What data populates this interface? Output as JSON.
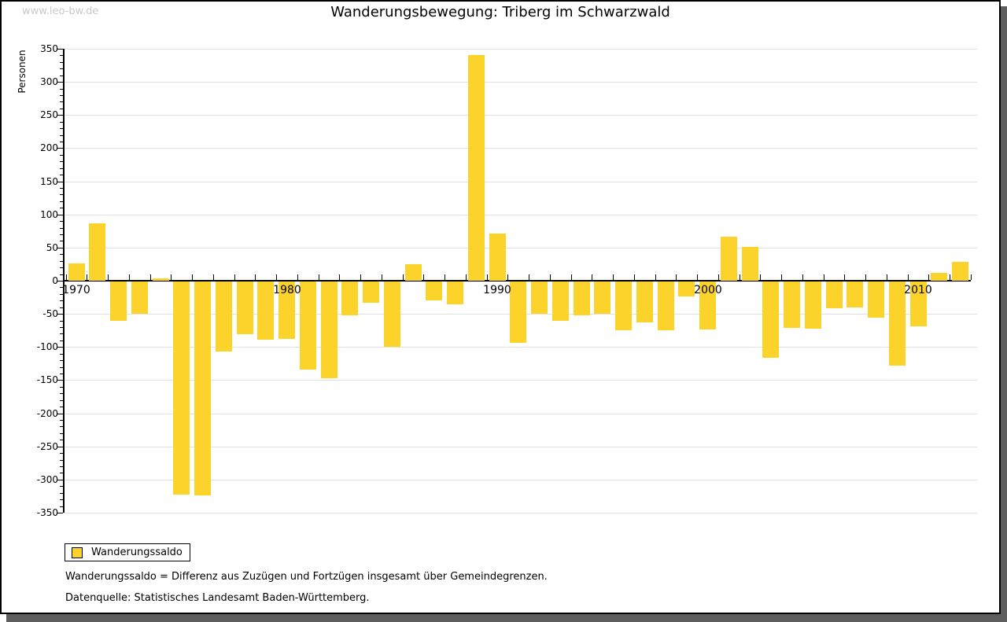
{
  "window": {
    "watermark": "www.leo-bw.de"
  },
  "header": {
    "title": "Wanderungsbewegung: Triberg im Schwarzwald"
  },
  "chart_data": {
    "type": "bar",
    "title": "Wanderungsbewegung: Triberg im Schwarzwald",
    "xlabel": "",
    "ylabel": "Personen",
    "ylim": [
      -350,
      350
    ],
    "grid": "horizontal",
    "legend_position": "bottom-left",
    "bar_color": "#FCD32B",
    "y_ticks": [
      350,
      300,
      250,
      200,
      150,
      100,
      50,
      0,
      -50,
      -100,
      -150,
      -200,
      -250,
      -300,
      -350
    ],
    "x_axis_labels": [
      "1970",
      "1980",
      "1990",
      "2000",
      "2010"
    ],
    "series": [
      {
        "name": "Wanderungssaldo",
        "categories": [
          1970,
          1971,
          1972,
          1973,
          1974,
          1975,
          1976,
          1977,
          1978,
          1979,
          1980,
          1981,
          1982,
          1983,
          1984,
          1985,
          1986,
          1987,
          1988,
          1989,
          1990,
          1991,
          1992,
          1993,
          1994,
          1995,
          1996,
          1997,
          1998,
          1999,
          2000,
          2001,
          2002,
          2003,
          2004,
          2005,
          2006,
          2007,
          2008,
          2009,
          2010,
          2011,
          2012
        ],
        "values": [
          26,
          87,
          -59,
          -49,
          3,
          -322,
          -323,
          -106,
          -80,
          -88,
          -87,
          -133,
          -146,
          -51,
          -32,
          -98,
          25,
          -29,
          -34,
          340,
          71,
          -93,
          -49,
          -59,
          -51,
          -49,
          -73,
          -62,
          -73,
          -22,
          -72,
          67,
          51,
          -115,
          -70,
          -71,
          -40,
          -39,
          -55,
          -127,
          -68,
          12,
          28
        ]
      }
    ]
  },
  "legend": {
    "label": "Wanderungssaldo"
  },
  "footnotes": {
    "line1": "Wanderungssaldo = Differenz aus Zuzügen und Fortzügen insgesamt über Gemeindegrenzen.",
    "line2": "Datenquelle: Statistisches Landesamt Baden-Württemberg."
  }
}
